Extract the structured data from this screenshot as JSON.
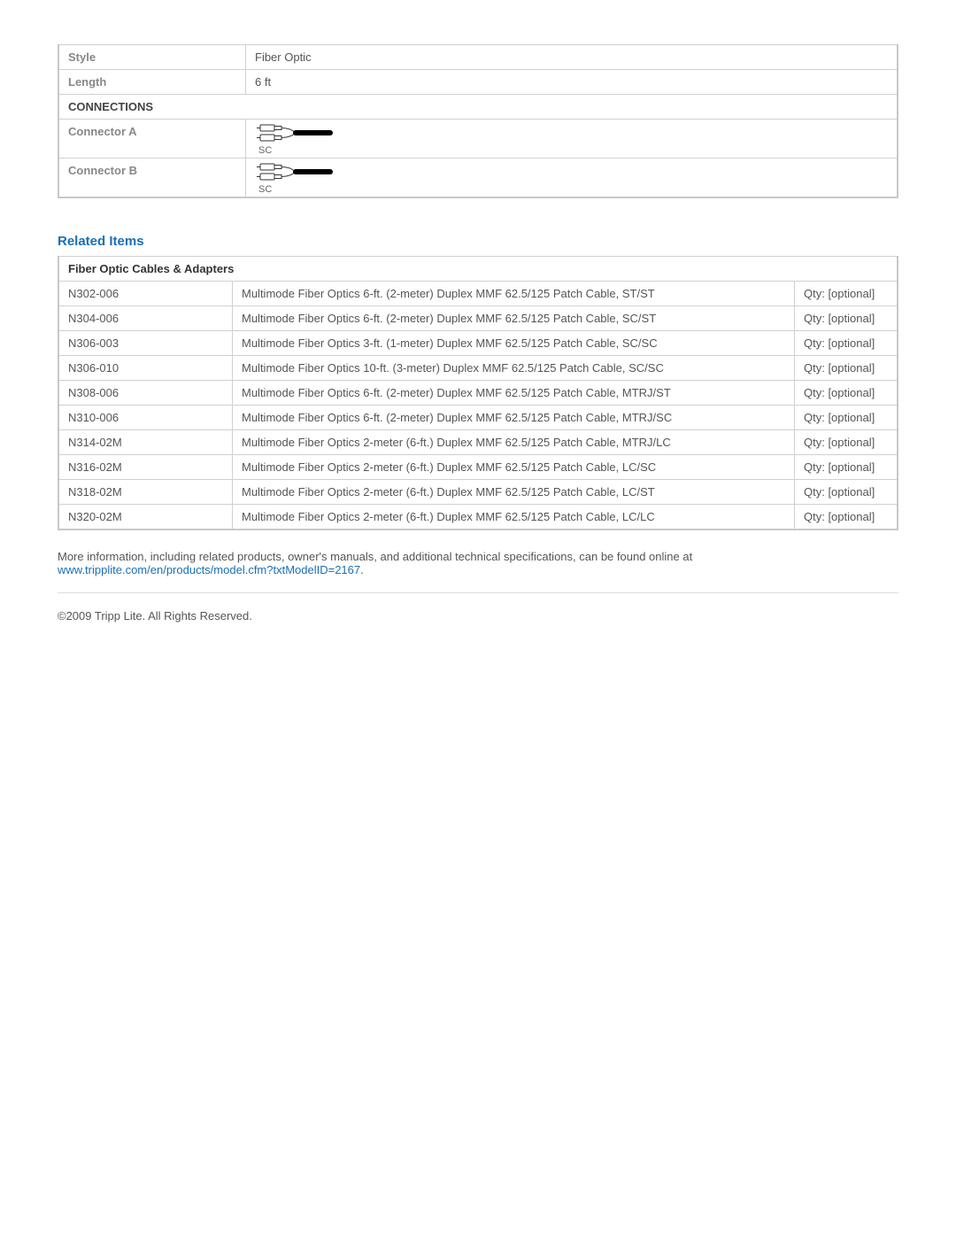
{
  "specs": {
    "rows": [
      {
        "label": "Style",
        "value": "Fiber Optic"
      },
      {
        "label": "Length",
        "value": "6 ft"
      }
    ],
    "connections_header": "CONNECTIONS",
    "connector_a_label": "Connector A",
    "connector_a_caption": "SC",
    "connector_b_label": "Connector B",
    "connector_b_caption": "SC"
  },
  "related": {
    "heading": "Related Items",
    "category": "Fiber Optic Cables & Adapters",
    "qty_label": "Qty: [optional]",
    "items": [
      {
        "sku": "N302-006",
        "desc": "Multimode Fiber Optics 6-ft. (2-meter) Duplex MMF 62.5/125 Patch Cable, ST/ST"
      },
      {
        "sku": "N304-006",
        "desc": "Multimode Fiber Optics 6-ft. (2-meter) Duplex MMF 62.5/125 Patch Cable, SC/ST"
      },
      {
        "sku": "N306-003",
        "desc": "Multimode Fiber Optics 3-ft. (1-meter) Duplex MMF 62.5/125 Patch Cable, SC/SC"
      },
      {
        "sku": "N306-010",
        "desc": "Multimode Fiber Optics 10-ft. (3-meter) Duplex MMF 62.5/125 Patch Cable, SC/SC"
      },
      {
        "sku": "N308-006",
        "desc": "Multimode Fiber Optics 6-ft. (2-meter) Duplex MMF 62.5/125 Patch Cable, MTRJ/ST"
      },
      {
        "sku": "N310-006",
        "desc": "Multimode Fiber Optics 6-ft. (2-meter) Duplex MMF 62.5/125 Patch Cable, MTRJ/SC"
      },
      {
        "sku": "N314-02M",
        "desc": "Multimode Fiber Optics 2-meter (6-ft.) Duplex MMF 62.5/125 Patch Cable, MTRJ/LC"
      },
      {
        "sku": "N316-02M",
        "desc": "Multimode Fiber Optics 2-meter (6-ft.) Duplex MMF 62.5/125 Patch Cable, LC/SC"
      },
      {
        "sku": "N318-02M",
        "desc": "Multimode Fiber Optics 2-meter (6-ft.) Duplex MMF 62.5/125 Patch Cable, LC/ST"
      },
      {
        "sku": "N320-02M",
        "desc": "Multimode Fiber Optics 2-meter (6-ft.) Duplex MMF 62.5/125 Patch Cable, LC/LC"
      }
    ]
  },
  "footer": {
    "more_info": "More information, including related products, owner's manuals, and additional technical specifications, can be found online at",
    "link_text": "www.tripplite.com/en/products/model.cfm?txtModelID=2167",
    "copyright": "©2009 Tripp Lite.  All Rights Reserved."
  }
}
